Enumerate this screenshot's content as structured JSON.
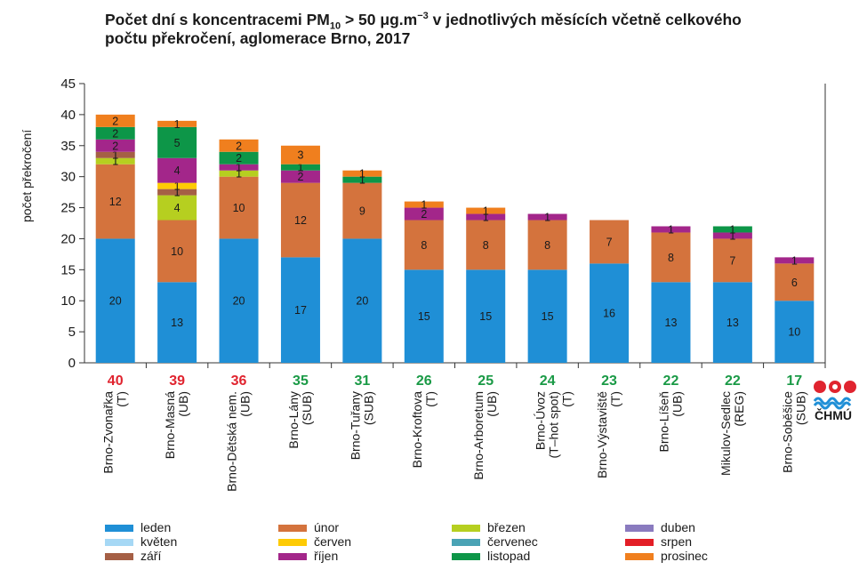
{
  "title_part1": "Počet dní s koncentracemi PM",
  "title_sub": "10",
  "title_part2": " > 50 μg.m",
  "title_sup": "−3",
  "title_part3": " v jednotlivých měsících včetně celkového",
  "title_line2": "počtu překročení, aglomerace Brno, 2017",
  "logo_text": "ČHMÚ",
  "chart_data": {
    "type": "bar",
    "stacked": true,
    "ylabel": "počet překročení",
    "ylim": [
      0,
      45
    ],
    "yticks": [
      0,
      5,
      10,
      15,
      20,
      25,
      30,
      35,
      40,
      45
    ],
    "grid": false,
    "legend_position": "bottom",
    "categories": [
      {
        "name": "Brno-Zvonařka",
        "type": "(T)",
        "total": "40",
        "total_color": "#e0242f"
      },
      {
        "name": "Brno-Masná",
        "type": "(UB)",
        "total": "39",
        "total_color": "#e0242f"
      },
      {
        "name": "Brno-Dětská nem.",
        "type": "(UB)",
        "total": "36",
        "total_color": "#e0242f"
      },
      {
        "name": "Brno-Lány",
        "type": "(SUB)",
        "total": "35",
        "total_color": "#1a9a46"
      },
      {
        "name": "Brno-Tuřany",
        "type": "(SUB)",
        "total": "31",
        "total_color": "#1a9a46"
      },
      {
        "name": "Brno-Kroftova",
        "type": "(T)",
        "total": "26",
        "total_color": "#1a9a46"
      },
      {
        "name": "Brno-Arboretum",
        "type": "(UB)",
        "total": "25",
        "total_color": "#1a9a46"
      },
      {
        "name": "Brno-Úvoz",
        "type": "(T–hot spot) (T)",
        "total": "24",
        "total_color": "#1a9a46"
      },
      {
        "name": "Brno-Výstaviště",
        "type": "(T)",
        "total": "23",
        "total_color": "#1a9a46"
      },
      {
        "name": "Brno-Líšeň",
        "type": "(UB)",
        "total": "22",
        "total_color": "#1a9a46"
      },
      {
        "name": "Mikulov-Sedlec",
        "type": "(REG)",
        "total": "22",
        "total_color": "#1a9a46"
      },
      {
        "name": "Brno-Soběšice",
        "type": "(SUB)",
        "total": "17",
        "total_color": "#1a9a46"
      }
    ],
    "series": [
      {
        "name": "leden",
        "color": "#1f8fd6",
        "values": [
          20,
          13,
          20,
          17,
          20,
          15,
          15,
          15,
          16,
          13,
          13,
          10
        ]
      },
      {
        "name": "květen",
        "color": "#a6d8f5",
        "values": [
          0,
          0,
          0,
          0,
          0,
          0,
          0,
          0,
          0,
          0,
          0,
          0
        ]
      },
      {
        "name": "září",
        "color": "#a55f45",
        "values": [
          1,
          1,
          0,
          0,
          0,
          0,
          0,
          0,
          0,
          0,
          0,
          0
        ]
      },
      {
        "name": "únor",
        "color": "#d4733d",
        "values": [
          12,
          10,
          10,
          12,
          9,
          8,
          8,
          8,
          7,
          8,
          7,
          6
        ]
      },
      {
        "name": "červen",
        "color": "#fecb05",
        "values": [
          0,
          1,
          0,
          0,
          0,
          0,
          0,
          0,
          0,
          0,
          0,
          0
        ]
      },
      {
        "name": "říjen",
        "color": "#a3268a",
        "values": [
          2,
          4,
          1,
          2,
          0,
          2,
          1,
          1,
          0,
          1,
          1,
          1
        ]
      },
      {
        "name": "březen",
        "color": "#b6cf20",
        "values": [
          1,
          4,
          1,
          0,
          0,
          0,
          0,
          0,
          0,
          0,
          0,
          0
        ]
      },
      {
        "name": "červenec",
        "color": "#4aa3b5",
        "values": [
          0,
          0,
          0,
          0,
          0,
          0,
          0,
          0,
          0,
          0,
          0,
          0
        ]
      },
      {
        "name": "listopad",
        "color": "#0d9648",
        "values": [
          2,
          5,
          2,
          1,
          1,
          0,
          0,
          0,
          0,
          0,
          1,
          0
        ]
      },
      {
        "name": "duben",
        "color": "#8a7bbf",
        "values": [
          0,
          0,
          0,
          0,
          0,
          0,
          0,
          0,
          0,
          0,
          0,
          0
        ]
      },
      {
        "name": "srpen",
        "color": "#e31e26",
        "values": [
          0,
          0,
          0,
          0,
          0,
          0,
          0,
          0,
          0,
          0,
          0,
          0
        ]
      },
      {
        "name": "prosinec",
        "color": "#f07f1e",
        "values": [
          2,
          1,
          2,
          3,
          1,
          1,
          1,
          0,
          0,
          0,
          0,
          0
        ]
      }
    ],
    "stack_order": [
      "leden",
      "únor",
      "březen",
      "září",
      "červen",
      "říjen",
      "listopad",
      "prosinec"
    ]
  }
}
